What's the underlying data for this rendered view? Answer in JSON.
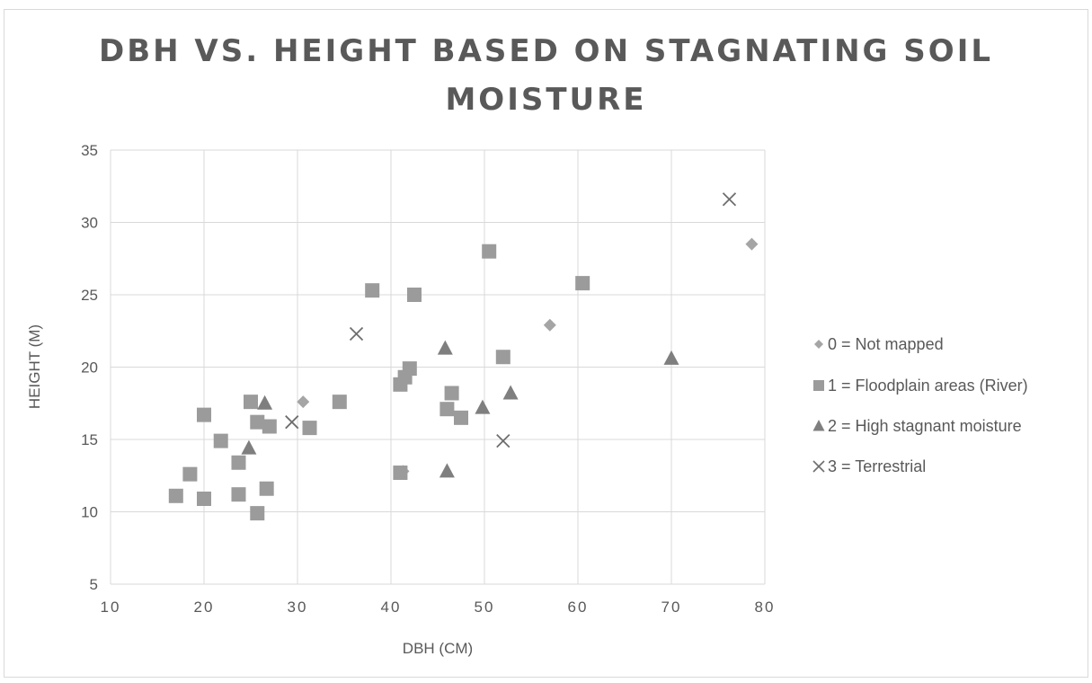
{
  "chart_data": {
    "type": "scatter",
    "title": "DBH VS. HEIGHT BASED ON STAGNATING SOIL MOISTURE",
    "xlabel": "DBH (CM)",
    "ylabel": "HEIGHT (M)",
    "xlim": [
      10,
      80
    ],
    "ylim": [
      5,
      35
    ],
    "xticks": [
      10,
      20,
      30,
      40,
      50,
      60,
      70,
      80
    ],
    "yticks": [
      5,
      10,
      15,
      20,
      25,
      30,
      35
    ],
    "grid": true,
    "legend_position": "right",
    "series": [
      {
        "name": "0 = Not mapped",
        "marker": "diamond",
        "color": "#a5a5a5",
        "points": [
          [
            30.6,
            17.6
          ],
          [
            41.3,
            12.8
          ],
          [
            57.0,
            22.9
          ],
          [
            78.6,
            28.5
          ]
        ]
      },
      {
        "name": "1 = Floodplain areas (River)",
        "marker": "square",
        "color": "#9b9b9b",
        "points": [
          [
            17.0,
            11.1
          ],
          [
            18.5,
            12.6
          ],
          [
            20.0,
            10.9
          ],
          [
            20.0,
            16.7
          ],
          [
            21.8,
            14.9
          ],
          [
            23.7,
            11.2
          ],
          [
            23.7,
            13.4
          ],
          [
            25.0,
            17.6
          ],
          [
            25.7,
            16.2
          ],
          [
            25.7,
            9.9
          ],
          [
            26.7,
            11.6
          ],
          [
            27.0,
            15.9
          ],
          [
            31.3,
            15.8
          ],
          [
            34.5,
            17.6
          ],
          [
            38.0,
            25.3
          ],
          [
            41.0,
            12.7
          ],
          [
            41.0,
            18.8
          ],
          [
            41.5,
            19.3
          ],
          [
            42.0,
            19.9
          ],
          [
            42.5,
            25.0
          ],
          [
            46.0,
            17.1
          ],
          [
            46.5,
            18.2
          ],
          [
            47.5,
            16.5
          ],
          [
            50.5,
            28.0
          ],
          [
            52.0,
            20.7
          ],
          [
            60.5,
            25.8
          ]
        ]
      },
      {
        "name": "2 = High stagnant moisture",
        "marker": "triangle",
        "color": "#7f7f7f",
        "points": [
          [
            24.8,
            14.4
          ],
          [
            26.5,
            17.5
          ],
          [
            45.8,
            21.3
          ],
          [
            46.0,
            12.8
          ],
          [
            49.8,
            17.2
          ],
          [
            52.8,
            18.2
          ],
          [
            70.0,
            20.6
          ]
        ]
      },
      {
        "name": "3 = Terrestrial",
        "marker": "x",
        "color": "#6e6e6e",
        "points": [
          [
            29.4,
            16.2
          ],
          [
            36.3,
            22.3
          ],
          [
            52.0,
            14.9
          ],
          [
            76.2,
            31.6
          ]
        ]
      }
    ]
  }
}
